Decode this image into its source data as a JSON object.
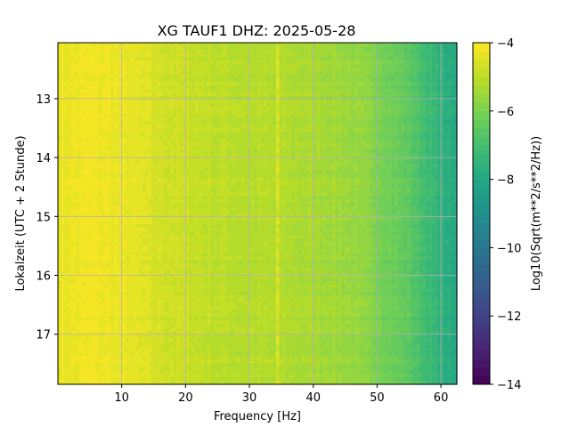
{
  "chart_data": {
    "type": "heatmap",
    "title": "XG TAUF1  DHZ: 2025-05-28",
    "xlabel": "Frequency [Hz]",
    "ylabel": "Lokalzeit (UTC + 2 Stunde)",
    "colorbar_label": "Log10(Sqrt(m**2/s**2/Hz))",
    "colormap": "viridis",
    "grid": true,
    "xlim": [
      0,
      62.5
    ],
    "ylim": [
      17.85,
      12.05
    ],
    "y_inverted": true,
    "x_ticks": [
      10,
      20,
      30,
      40,
      50,
      60
    ],
    "x_tick_labels": [
      "10",
      "20",
      "30",
      "40",
      "50",
      "60"
    ],
    "y_ticks": [
      13,
      14,
      15,
      16,
      17
    ],
    "y_tick_labels": [
      "13",
      "14",
      "15",
      "16",
      "17"
    ],
    "colorbar_range": [
      -14,
      -4
    ],
    "colorbar_levels": 40,
    "colorbar_ticks": [
      -14,
      -12,
      -10,
      -8,
      -6,
      -4
    ],
    "colorbar_tick_labels": [
      "−14",
      "−12",
      "−10",
      "−8",
      "−6",
      "−4"
    ],
    "frequency_profile": {
      "frequency_hz": [
        0,
        5,
        10,
        15,
        20,
        25,
        30,
        35,
        40,
        45,
        50,
        55,
        60,
        62.5
      ],
      "log10_amplitude": [
        -4.3,
        -4.2,
        -4.3,
        -4.6,
        -4.8,
        -5.0,
        -5.1,
        -5.2,
        -5.3,
        -5.5,
        -5.9,
        -6.5,
        -7.6,
        -8.0
      ]
    },
    "features": [
      {
        "frequency_hz": 34.5,
        "description_level": -4.6
      }
    ]
  }
}
